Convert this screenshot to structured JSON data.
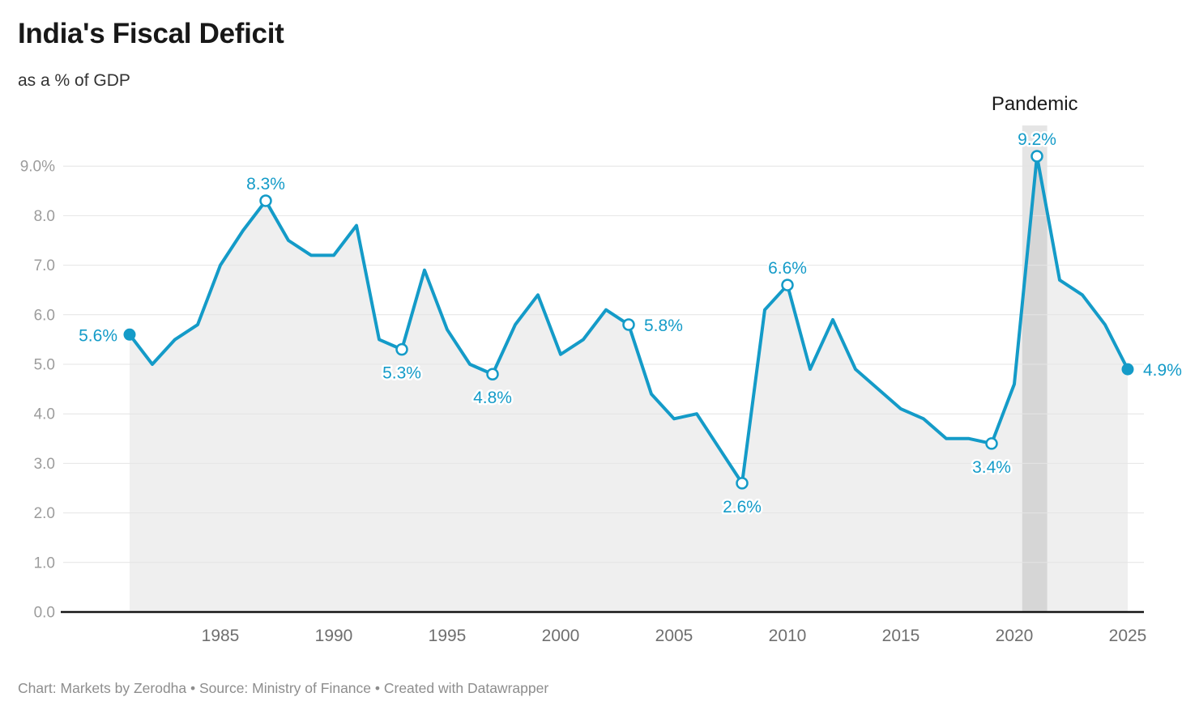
{
  "header": {
    "title": "India's Fiscal Deficit",
    "subtitle": "as a % of GDP"
  },
  "footer": {
    "text": "Chart: Markets by Zerodha • Source: Ministry of Finance • Created with Datawrapper"
  },
  "chart_data": {
    "type": "area",
    "title": "India's Fiscal Deficit",
    "subtitle": "as a % of GDP",
    "x": [
      1981,
      1982,
      1983,
      1984,
      1985,
      1986,
      1987,
      1988,
      1989,
      1990,
      1991,
      1992,
      1993,
      1994,
      1995,
      1996,
      1997,
      1998,
      1999,
      2000,
      2001,
      2002,
      2003,
      2004,
      2005,
      2006,
      2007,
      2008,
      2009,
      2010,
      2011,
      2012,
      2013,
      2014,
      2015,
      2016,
      2017,
      2018,
      2019,
      2020,
      2021,
      2022,
      2023,
      2024,
      2025
    ],
    "values": [
      5.6,
      5.0,
      5.5,
      5.8,
      7.0,
      7.7,
      8.3,
      7.5,
      7.2,
      7.2,
      7.8,
      5.5,
      5.3,
      6.9,
      5.7,
      5.0,
      4.8,
      5.8,
      6.4,
      5.2,
      5.5,
      6.1,
      5.8,
      4.4,
      3.9,
      4.0,
      3.3,
      2.6,
      6.1,
      6.6,
      4.9,
      5.9,
      4.9,
      4.5,
      4.1,
      3.9,
      3.5,
      3.5,
      3.4,
      4.6,
      9.2,
      6.7,
      6.4,
      5.8,
      4.9
    ],
    "ylim": [
      0,
      9.6
    ],
    "grid": true,
    "legend": "none",
    "yticks": [
      {
        "v": 0,
        "t": "0.0"
      },
      {
        "v": 1,
        "t": "1.0"
      },
      {
        "v": 2,
        "t": "2.0"
      },
      {
        "v": 3,
        "t": "3.0"
      },
      {
        "v": 4,
        "t": "4.0"
      },
      {
        "v": 5,
        "t": "5.0"
      },
      {
        "v": 6,
        "t": "6.0"
      },
      {
        "v": 7,
        "t": "7.0"
      },
      {
        "v": 8,
        "t": "8.0"
      },
      {
        "v": 9,
        "t": "9.0%"
      }
    ],
    "xticks": [
      1985,
      1990,
      1995,
      2000,
      2005,
      2010,
      2015,
      2020,
      2025
    ],
    "annotations": [
      {
        "year": 1981,
        "value": 5.6,
        "label": "5.6%",
        "placement": "left",
        "marker": "filled"
      },
      {
        "year": 1987,
        "value": 8.3,
        "label": "8.3%",
        "placement": "above",
        "marker": "open"
      },
      {
        "year": 1993,
        "value": 5.3,
        "label": "5.3%",
        "placement": "below",
        "marker": "open"
      },
      {
        "year": 1997,
        "value": 4.8,
        "label": "4.8%",
        "placement": "below",
        "marker": "open"
      },
      {
        "year": 2003,
        "value": 5.8,
        "label": "5.8%",
        "placement": "right",
        "marker": "open"
      },
      {
        "year": 2008,
        "value": 2.6,
        "label": "2.6%",
        "placement": "below",
        "marker": "open"
      },
      {
        "year": 2010,
        "value": 6.6,
        "label": "6.6%",
        "placement": "above",
        "marker": "open"
      },
      {
        "year": 2019,
        "value": 3.4,
        "label": "3.4%",
        "placement": "below",
        "marker": "open"
      },
      {
        "year": 2021,
        "value": 9.2,
        "label": "9.2%",
        "placement": "above",
        "marker": "open"
      },
      {
        "year": 2025,
        "value": 4.9,
        "label": "4.9%",
        "placement": "right",
        "marker": "filled"
      }
    ],
    "band": {
      "label": "Pandemic",
      "from": 2020.35,
      "to": 2021.45
    },
    "colors": {
      "line": "#149bc8",
      "area": "#efefef",
      "band": "rgba(0,0,0,0.10)",
      "grid": "#e4e4e4",
      "axis": "#161616",
      "ytick_text": "#9c9c9c",
      "xtick_text": "#6f6f6f",
      "annotation_text": "#149bc8",
      "band_label_text": "#1a1a1a"
    }
  }
}
